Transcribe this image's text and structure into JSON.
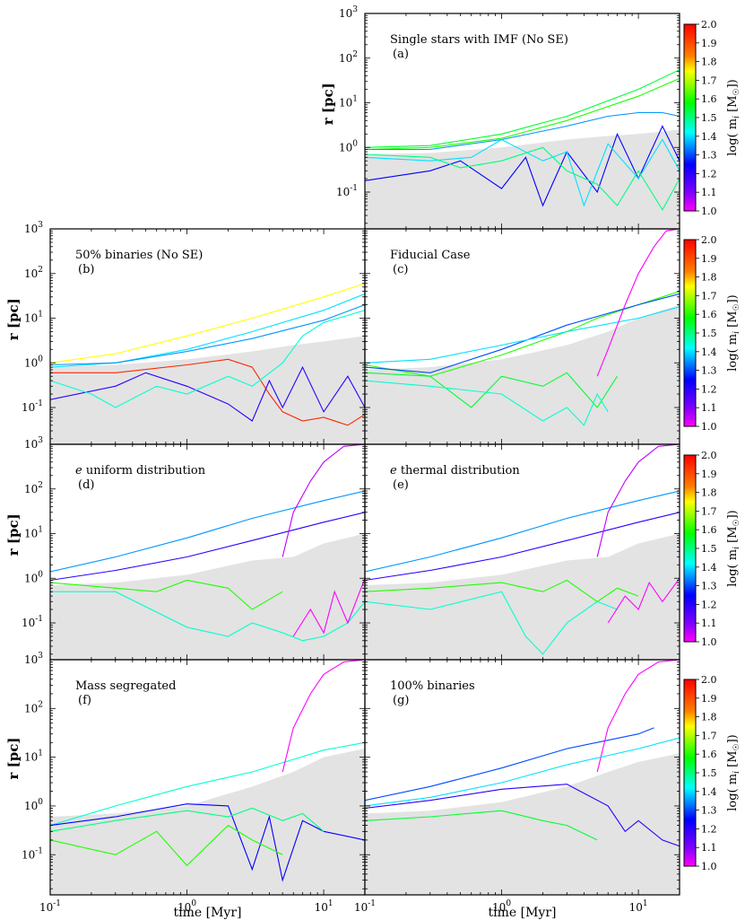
{
  "figure": {
    "x_axis_label": "time [Myr]",
    "y_axis_label": "r [pc]",
    "colorbar_label": "log( m",
    "colorbar_label_sub": "i",
    "colorbar_label_tail": " [M",
    "colorbar_label_sun": "☉",
    "colorbar_label_end": "])",
    "colorbar_ticks": [
      "2.0",
      "1.9",
      "1.8",
      "1.7",
      "1.6",
      "1.5",
      "1.4",
      "1.3",
      "1.2",
      "1.1",
      "1.0"
    ],
    "colorbar_range": [
      1.0,
      2.0
    ],
    "x_tick_labels": [
      {
        "base": "10",
        "exp": "-1",
        "value": 0.1
      },
      {
        "base": "10",
        "exp": "0",
        "value": 1
      },
      {
        "base": "10",
        "exp": "1",
        "value": 10
      }
    ],
    "y_tick_labels": [
      {
        "base": "10",
        "exp": "3",
        "value": 1000
      },
      {
        "base": "10",
        "exp": "2",
        "value": 100
      },
      {
        "base": "10",
        "exp": "1",
        "value": 10
      },
      {
        "base": "10",
        "exp": "0",
        "value": 1
      },
      {
        "base": "10",
        "exp": "-1",
        "value": 0.1
      }
    ]
  },
  "chart_data": [
    {
      "type": "line",
      "id": "a",
      "title": "Single stars with IMF (No SE)",
      "label": "(a)",
      "title_prefix": "",
      "xlabel": "",
      "ylabel": "r [pc]",
      "xscale": "log",
      "yscale": "log",
      "xlim": [
        0.1,
        20
      ],
      "ylim": [
        0.015,
        1000
      ],
      "shaded_envelope": {
        "x": [
          0.1,
          0.3,
          1,
          3,
          6,
          10,
          20
        ],
        "y": [
          0.7,
          0.75,
          1.0,
          1.5,
          1.8,
          2.0,
          2.5
        ]
      },
      "series": [
        {
          "color_value": 1.55,
          "x": [
            0.1,
            0.3,
            1,
            3,
            10,
            20
          ],
          "y": [
            1.0,
            1.1,
            2.0,
            5,
            20,
            55
          ]
        },
        {
          "color_value": 1.6,
          "x": [
            0.1,
            0.3,
            1,
            3,
            10,
            20
          ],
          "y": [
            0.9,
            1.0,
            1.6,
            4,
            14,
            35
          ]
        },
        {
          "color_value": 1.35,
          "x": [
            0.1,
            0.3,
            1,
            3,
            6,
            10,
            15,
            20
          ],
          "y": [
            0.9,
            0.9,
            1.5,
            3,
            5,
            6,
            6,
            5
          ]
        },
        {
          "color_value": 1.25,
          "x": [
            0.1,
            0.3,
            0.5,
            1,
            1.5,
            2,
            3,
            5,
            7,
            10,
            15,
            20
          ],
          "y": [
            0.18,
            0.3,
            0.5,
            0.12,
            0.6,
            0.05,
            0.8,
            0.1,
            2,
            0.2,
            3,
            0.5
          ]
        },
        {
          "color_value": 1.4,
          "x": [
            0.1,
            0.3,
            0.6,
            1,
            2,
            3,
            4,
            6,
            10,
            15,
            20
          ],
          "y": [
            0.6,
            0.5,
            0.6,
            1.5,
            0.5,
            0.8,
            0.05,
            1.2,
            0.2,
            1.5,
            0.3
          ]
        },
        {
          "color_value": 1.5,
          "x": [
            0.1,
            0.3,
            0.5,
            1,
            2,
            3,
            5,
            7,
            10,
            15,
            20
          ],
          "y": [
            0.7,
            0.6,
            0.35,
            0.5,
            1.0,
            0.3,
            0.15,
            0.05,
            0.3,
            0.04,
            0.2
          ]
        }
      ]
    },
    {
      "type": "line",
      "id": "b",
      "title": "50% binaries (No SE)",
      "label": "(b)",
      "title_prefix": "",
      "xlabel": "",
      "ylabel": "r [pc]",
      "xscale": "log",
      "yscale": "log",
      "xlim": [
        0.1,
        20
      ],
      "ylim": [
        0.015,
        1000
      ],
      "shaded_envelope": {
        "x": [
          0.1,
          0.3,
          1,
          3,
          6,
          10,
          20
        ],
        "y": [
          0.8,
          0.9,
          1.2,
          1.8,
          2.5,
          3,
          4
        ]
      },
      "series": [
        {
          "color_value": 1.75,
          "x": [
            0.1,
            0.3,
            1,
            3,
            10,
            20
          ],
          "y": [
            1.0,
            1.6,
            4,
            10,
            30,
            60
          ]
        },
        {
          "color_value": 1.4,
          "x": [
            0.1,
            0.3,
            1,
            3,
            10,
            20
          ],
          "y": [
            0.8,
            1.0,
            2,
            5,
            15,
            35
          ]
        },
        {
          "color_value": 1.35,
          "x": [
            0.1,
            0.3,
            1,
            3,
            10,
            20
          ],
          "y": [
            0.9,
            1.0,
            1.8,
            3.5,
            9,
            20
          ]
        },
        {
          "color_value": 1.95,
          "x": [
            0.1,
            0.3,
            1,
            2,
            3,
            4,
            5,
            7,
            10,
            15,
            20
          ],
          "y": [
            0.6,
            0.6,
            0.9,
            1.2,
            0.8,
            0.2,
            0.08,
            0.05,
            0.06,
            0.04,
            0.07
          ]
        },
        {
          "color_value": 1.2,
          "x": [
            0.1,
            0.3,
            0.5,
            1,
            2,
            3,
            4,
            5,
            7,
            10,
            15,
            20
          ],
          "y": [
            0.15,
            0.3,
            0.6,
            0.3,
            0.12,
            0.05,
            0.4,
            0.1,
            0.8,
            0.08,
            0.5,
            0.1
          ]
        },
        {
          "color_value": 1.45,
          "x": [
            0.1,
            0.2,
            0.3,
            0.6,
            1,
            2,
            3,
            5,
            7,
            10,
            20
          ],
          "y": [
            0.4,
            0.2,
            0.1,
            0.3,
            0.2,
            0.5,
            0.3,
            1.0,
            4,
            8,
            15
          ]
        }
      ]
    },
    {
      "type": "line",
      "id": "c",
      "title": "Fiducial Case",
      "label": "(c)",
      "title_prefix": "",
      "xlabel": "",
      "ylabel": "",
      "xscale": "log",
      "yscale": "log",
      "xlim": [
        0.1,
        20
      ],
      "ylim": [
        0.015,
        1000
      ],
      "shaded_envelope": {
        "x": [
          0.1,
          0.3,
          1,
          3,
          6,
          10,
          20
        ],
        "y": [
          0.7,
          0.8,
          1.2,
          2.5,
          5,
          10,
          20
        ]
      },
      "series": [
        {
          "color_value": 1.6,
          "x": [
            0.1,
            0.3,
            1,
            3,
            5,
            10,
            15,
            20
          ],
          "y": [
            0.9,
            0.5,
            1.5,
            5,
            10,
            20,
            30,
            40
          ]
        },
        {
          "color_value": 1.3,
          "x": [
            0.1,
            0.3,
            1,
            3,
            10,
            20
          ],
          "y": [
            0.8,
            0.6,
            2,
            7,
            20,
            35
          ]
        },
        {
          "color_value": 1.4,
          "x": [
            0.1,
            0.3,
            1,
            3,
            10,
            20
          ],
          "y": [
            1.0,
            1.2,
            2.5,
            5,
            10,
            18
          ]
        },
        {
          "color_value": 1.0,
          "x": [
            5,
            6,
            8,
            10,
            13,
            16,
            20
          ],
          "y": [
            0.5,
            2,
            20,
            100,
            400,
            900,
            1000
          ]
        },
        {
          "color_value": 1.55,
          "x": [
            0.1,
            0.3,
            0.6,
            1,
            2,
            3,
            5,
            7
          ],
          "y": [
            0.6,
            0.5,
            0.1,
            0.5,
            0.3,
            0.6,
            0.1,
            0.5
          ]
        },
        {
          "color_value": 1.45,
          "x": [
            0.1,
            0.3,
            1,
            2,
            3,
            4,
            5,
            6
          ],
          "y": [
            0.4,
            0.3,
            0.2,
            0.05,
            0.1,
            0.04,
            0.2,
            0.08
          ]
        }
      ]
    },
    {
      "type": "line",
      "id": "d",
      "title": "uniform distribution",
      "label": "(d)",
      "title_prefix": "e",
      "xlabel": "",
      "ylabel": "r [pc]",
      "xscale": "log",
      "yscale": "log",
      "xlim": [
        0.1,
        20
      ],
      "ylim": [
        0.015,
        1000
      ],
      "shaded_envelope": {
        "x": [
          0.1,
          0.3,
          1,
          3,
          6,
          10,
          20
        ],
        "y": [
          0.7,
          0.8,
          1.2,
          2.5,
          3,
          6,
          10
        ]
      },
      "series": [
        {
          "color_value": 1.35,
          "x": [
            0.1,
            0.3,
            1,
            3,
            10,
            20
          ],
          "y": [
            1.4,
            3,
            8,
            22,
            55,
            90
          ]
        },
        {
          "color_value": 1.2,
          "x": [
            0.1,
            0.3,
            1,
            3,
            10,
            20
          ],
          "y": [
            0.9,
            1.5,
            3,
            7,
            18,
            30
          ]
        },
        {
          "color_value": 1.05,
          "x": [
            5,
            6,
            8,
            10,
            14,
            20
          ],
          "y": [
            3,
            30,
            150,
            400,
            900,
            1000
          ]
        },
        {
          "color_value": 1.45,
          "x": [
            0.1,
            0.3,
            1,
            2,
            3,
            5,
            7,
            10,
            15,
            20
          ],
          "y": [
            0.5,
            0.5,
            0.08,
            0.05,
            0.1,
            0.06,
            0.04,
            0.05,
            0.1,
            0.3
          ]
        },
        {
          "color_value": 1.6,
          "x": [
            0.1,
            0.3,
            0.6,
            1,
            2,
            3,
            5
          ],
          "y": [
            0.8,
            0.6,
            0.5,
            0.9,
            0.6,
            0.2,
            0.5
          ]
        },
        {
          "color_value": 1.0,
          "x": [
            6,
            8,
            10,
            12,
            15,
            20
          ],
          "y": [
            0.05,
            0.2,
            0.06,
            0.5,
            0.1,
            1
          ]
        }
      ]
    },
    {
      "type": "line",
      "id": "e",
      "title": "thermal distribution",
      "label": "(e)",
      "title_prefix": "e",
      "xlabel": "",
      "ylabel": "",
      "xscale": "log",
      "yscale": "log",
      "xlim": [
        0.1,
        20
      ],
      "ylim": [
        0.015,
        1000
      ],
      "shaded_envelope": {
        "x": [
          0.1,
          0.3,
          1,
          3,
          6,
          10,
          20
        ],
        "y": [
          0.7,
          0.8,
          1.2,
          2.5,
          3,
          6,
          10
        ]
      },
      "series": [
        {
          "color_value": 1.35,
          "x": [
            0.1,
            0.3,
            1,
            3,
            10,
            20
          ],
          "y": [
            1.4,
            3,
            8,
            22,
            55,
            90
          ]
        },
        {
          "color_value": 1.2,
          "x": [
            0.1,
            0.3,
            1,
            3,
            10,
            20
          ],
          "y": [
            0.9,
            1.5,
            3,
            7,
            18,
            30
          ]
        },
        {
          "color_value": 1.05,
          "x": [
            5,
            6,
            8,
            10,
            14,
            20
          ],
          "y": [
            3,
            30,
            150,
            400,
            900,
            1000
          ]
        },
        {
          "color_value": 1.6,
          "x": [
            0.1,
            0.3,
            1,
            2,
            3,
            5,
            7,
            10
          ],
          "y": [
            0.5,
            0.6,
            0.8,
            0.5,
            0.9,
            0.3,
            0.6,
            0.4
          ]
        },
        {
          "color_value": 1.45,
          "x": [
            0.1,
            0.3,
            1,
            1.5,
            2,
            3,
            5,
            7
          ],
          "y": [
            0.3,
            0.2,
            0.5,
            0.05,
            0.02,
            0.1,
            0.3,
            0.2
          ]
        },
        {
          "color_value": 1.0,
          "x": [
            6,
            8,
            10,
            12,
            15,
            20
          ],
          "y": [
            0.1,
            0.4,
            0.2,
            0.8,
            0.3,
            1
          ]
        }
      ]
    },
    {
      "type": "line",
      "id": "f",
      "title": "Mass segregated",
      "label": "(f)",
      "title_prefix": "",
      "xlabel": "time [Myr]",
      "ylabel": "r [pc]",
      "xscale": "log",
      "yscale": "log",
      "xlim": [
        0.1,
        20
      ],
      "ylim": [
        0.015,
        1000
      ],
      "shaded_envelope": {
        "x": [
          0.1,
          0.3,
          1,
          3,
          6,
          10,
          20
        ],
        "y": [
          0.6,
          0.7,
          1.0,
          2.5,
          5,
          10,
          15
        ]
      },
      "series": [
        {
          "color_value": 1.45,
          "x": [
            0.1,
            0.3,
            1,
            3,
            6,
            10,
            20
          ],
          "y": [
            0.4,
            1.0,
            2.5,
            5,
            9,
            14,
            20
          ]
        },
        {
          "color_value": 1.0,
          "x": [
            5,
            6,
            8,
            10,
            14,
            20
          ],
          "y": [
            5,
            40,
            200,
            500,
            900,
            1000
          ]
        },
        {
          "color_value": 1.25,
          "x": [
            0.1,
            0.3,
            1,
            2,
            3,
            4,
            5,
            7,
            10,
            20
          ],
          "y": [
            0.4,
            0.6,
            1.1,
            1.0,
            0.05,
            0.6,
            0.03,
            0.5,
            0.3,
            0.2
          ]
        },
        {
          "color_value": 1.6,
          "x": [
            0.1,
            0.3,
            0.6,
            1,
            2,
            3,
            5
          ],
          "y": [
            0.2,
            0.1,
            0.3,
            0.06,
            0.4,
            0.2,
            0.1
          ]
        },
        {
          "color_value": 1.5,
          "x": [
            0.1,
            0.3,
            1,
            2,
            3,
            5,
            7,
            10
          ],
          "y": [
            0.3,
            0.5,
            0.8,
            0.6,
            0.9,
            0.5,
            0.7,
            0.3
          ]
        }
      ]
    },
    {
      "type": "line",
      "id": "g",
      "title": "100% binaries",
      "label": "(g)",
      "title_prefix": "",
      "xlabel": "time [Myr]",
      "ylabel": "",
      "xscale": "log",
      "yscale": "log",
      "xlim": [
        0.1,
        20
      ],
      "ylim": [
        0.015,
        1000
      ],
      "shaded_envelope": {
        "x": [
          0.1,
          0.3,
          1,
          3,
          6,
          10,
          20
        ],
        "y": [
          0.7,
          0.8,
          1.2,
          2.5,
          5,
          8,
          12
        ]
      },
      "series": [
        {
          "color_value": 1.3,
          "x": [
            0.1,
            0.3,
            1,
            3,
            10,
            13
          ],
          "y": [
            1.3,
            2.5,
            6,
            15,
            30,
            40
          ]
        },
        {
          "color_value": 1.0,
          "x": [
            5,
            6,
            8,
            10,
            14,
            20
          ],
          "y": [
            5,
            40,
            200,
            500,
            900,
            1000
          ]
        },
        {
          "color_value": 1.4,
          "x": [
            0.1,
            0.3,
            1,
            3,
            10,
            20
          ],
          "y": [
            1.0,
            1.5,
            3,
            7,
            15,
            25
          ]
        },
        {
          "color_value": 1.2,
          "x": [
            0.1,
            0.3,
            1,
            3,
            6,
            8,
            10,
            15,
            20
          ],
          "y": [
            0.9,
            1.3,
            2.2,
            2.8,
            1.0,
            0.3,
            0.5,
            0.2,
            0.15
          ]
        },
        {
          "color_value": 1.55,
          "x": [
            0.1,
            0.3,
            1,
            2,
            3,
            5
          ],
          "y": [
            0.5,
            0.6,
            0.8,
            0.5,
            0.4,
            0.2
          ]
        }
      ]
    }
  ]
}
